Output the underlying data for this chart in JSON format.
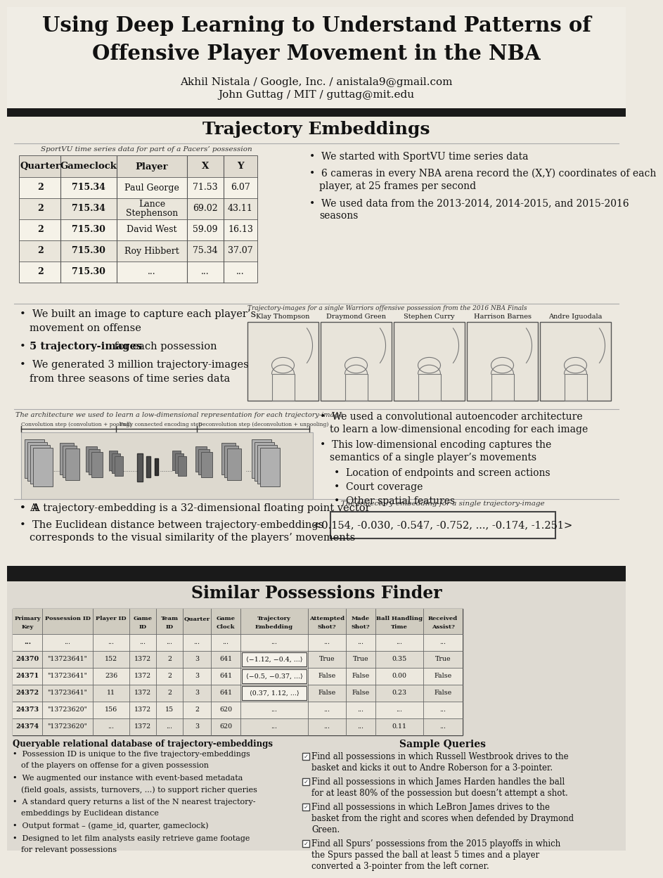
{
  "title_line1": "Using Deep Learning to Understand Patterns of",
  "title_line2": "Offensive Player Movement in the NBA",
  "author1": "Akhil Nistala / Google, Inc. / anistala9@gmail.com",
  "author2": "John Guttag / MIT / guttag@mit.edu",
  "section1_title": "Trajectory Embeddings",
  "table_caption": "SportVU time series data for part of a Pacers’ possession",
  "table_headers": [
    "Quarter",
    "Gameclock",
    "Player",
    "X",
    "Y"
  ],
  "table_rows": [
    [
      "2",
      "715.34",
      "Paul George",
      "71.53",
      "6.07"
    ],
    [
      "2",
      "715.34",
      "Lance\nStephenson",
      "69.02",
      "43.11"
    ],
    [
      "2",
      "715.30",
      "David West",
      "59.09",
      "16.13"
    ],
    [
      "2",
      "715.30",
      "Roy Hibbert",
      "75.34",
      "37.07"
    ],
    [
      "2",
      "715.30",
      "...",
      "...",
      "..."
    ]
  ],
  "bullets1": [
    "We started with SportVU time series data",
    "6 cameras in every NBA arena record the (X,Y) coordinates of each\nplayer, at 25 frames per second",
    "We used data from the 2013-2014, 2014-2015, and 2015-2016\nseasons"
  ],
  "traj_caption": "Trajectory-images for a single Warriors offensive possession from the 2016 NBA Finals",
  "player_names": [
    "Klay Thompson",
    "Draymond Green",
    "Stephen Curry",
    "Harrison Barnes",
    "Andre Iguodala"
  ],
  "bullets2_line1": "We built an image to capture each player’s",
  "bullets2_line2": "movement on offense",
  "bullets2_bold": "5 trajectory-images",
  "bullets2_bold_rest": " for each possession",
  "bullets2_line4": "We generated 3 million trajectory-images",
  "bullets2_line5": "from three seasons of time series data",
  "arch_caption": "The architecture we used to learn a low-dimensional representation for each trajectory-image",
  "arch_label1": "Convolution step (convolution + pooling)",
  "arch_label2": "Fully connected encoding step",
  "arch_label3": "Deconvolution step (deconvolution + unpooling)",
  "bullets3": [
    "We used a convolutional autoencoder architecture\nto learn a low-dimensional encoding for each image",
    "This low-dimensional encoding captures the\nsemantics of a single player’s movements",
    "Location of endpoints and screen actions",
    "Court coverage",
    "Other spatial features"
  ],
  "bullets4_line1": "A trajectory-embedding is a 32-dimensional floating point vector",
  "bullets4_line2": "The Euclidean distance between trajectory-embeddings",
  "bullets4_line3": "corresponds to the visual similarity of the players’ movements",
  "embedding_caption": "The trajectory-embedding for a single trajectory-image",
  "embedding_value": "<0.154, -0.030, -0.547, -0.752, ..., -0.174, -1.251>",
  "section2_title": "Similar Possessions Finder",
  "table2_headers_line1": [
    "Primary",
    "Possession ID",
    "Player ID",
    "Game",
    "Team",
    "Quarter",
    "Game",
    "Trajectory",
    "Attempted",
    "Made",
    "Ball Handling",
    "Received"
  ],
  "table2_headers_line2": [
    "Key",
    "",
    "",
    "ID",
    "ID",
    "",
    "Clock",
    "Embedding",
    "Shot?",
    "Shot?",
    "Time",
    "Assist?"
  ],
  "table2_rows": [
    [
      "...",
      "...",
      "...",
      "...",
      "...",
      "...",
      "...",
      "...",
      "...",
      "...",
      "...",
      "..."
    ],
    [
      "24370",
      "\"13723641\"",
      "152",
      "1372",
      "2",
      "3",
      "641",
      "⟨−1.12, −0.4, ...⟩",
      "True",
      "True",
      "0.35",
      "True"
    ],
    [
      "24371",
      "\"13723641\"",
      "236",
      "1372",
      "2",
      "3",
      "641",
      "⟨−0.5, −0.37, ...⟩",
      "False",
      "False",
      "0.00",
      "False"
    ],
    [
      "24372",
      "\"13723641\"",
      "11",
      "1372",
      "2",
      "3",
      "641",
      "⟨0.37, 1.12, ...⟩",
      "False",
      "False",
      "0.23",
      "False"
    ],
    [
      "24373",
      "\"13723620\"",
      "156",
      "1372",
      "15",
      "2",
      "620",
      "...",
      "...",
      "...",
      "...",
      "..."
    ],
    [
      "24374",
      "\"13723620\"",
      "...",
      "1372",
      "...",
      "3",
      "620",
      "...",
      "...",
      "...",
      "0.11",
      "..."
    ]
  ],
  "db_title": "Queryable relational database of trajectory-embeddings",
  "bullets5": [
    "Possession ID is unique to the five trajectory-embeddings\nof the players on offense for a given possession",
    "We augmented our instance with event-based metadata\n(field goals, assists, turnovers, ...) to support richer queries",
    "A standard query returns a list of the N nearest trajectory-\nembeddings by Euclidean distance",
    "Output format – (game_id, quarter, gameclock)",
    "Designed to let film analysts easily retrieve game footage\nfor relevant possessions"
  ],
  "sample_queries_title": "Sample Queries",
  "sample_queries": [
    "Find all possessions in which Russell Westbrook drives to the\nbasket and kicks it out to Andre Roberson for a 3-pointer.",
    "Find all possessions in which James Harden handles the ball\nfor at least 80% of the possession but doesn’t attempt a shot.",
    "Find all possessions in which LeBron James drives to the\nbasket from the right and scores when defended by Draymond\nGreen.",
    "Find all Spurs’ possessions from the 2015 playoffs in which\nthe Spurs passed the ball at least 5 times and a player\nconverted a 3-pointer from the left corner."
  ],
  "bg_top": "#ede9e0",
  "bg_bottom": "#ddd9d0",
  "black_bar": "#1a1a1a"
}
